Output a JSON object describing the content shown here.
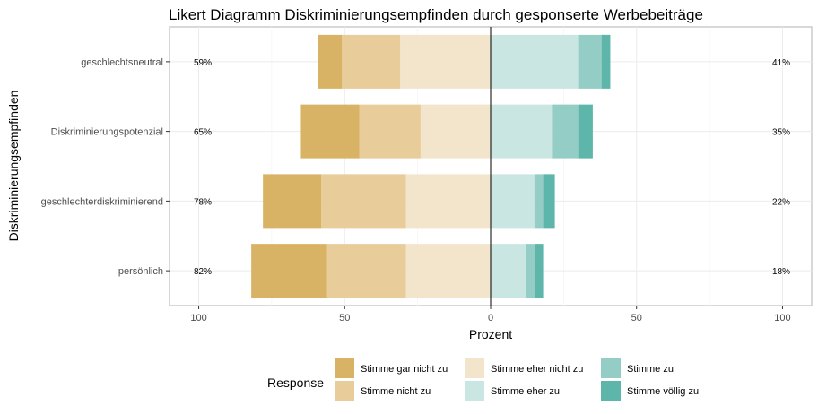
{
  "chart_data": {
    "type": "bar",
    "title": "Likert Diagramm Diskriminierungsempfinden durch gesponserte Werbebeiträge",
    "xlabel": "Prozent",
    "ylabel": "Diskriminierungsempfinden",
    "xlim": [
      -110,
      110
    ],
    "x_ticks": [
      {
        "value": -100,
        "label": "100"
      },
      {
        "value": -50,
        "label": "50"
      },
      {
        "value": 0,
        "label": "0"
      },
      {
        "value": 50,
        "label": "50"
      },
      {
        "value": 100,
        "label": "100"
      }
    ],
    "categories": [
      "geschlechtsneutral",
      "Diskriminierungspotenzial",
      "geschlechterdiskriminierend",
      "persönlich"
    ],
    "series": [
      {
        "name": "Stimme gar nicht zu",
        "color": "#d9b365",
        "values": [
          8,
          20,
          20,
          26
        ]
      },
      {
        "name": "Stimme nicht zu",
        "color": "#e8cc9a",
        "values": [
          20,
          21,
          29,
          27
        ]
      },
      {
        "name": "Stimme eher nicht zu",
        "color": "#f3e5cb",
        "values": [
          31,
          24,
          29,
          29
        ]
      },
      {
        "name": "Stimme eher zu",
        "color": "#c9e6e3",
        "values": [
          30,
          21,
          15,
          12
        ]
      },
      {
        "name": "Stimme zu",
        "color": "#93cdc5",
        "values": [
          8,
          9,
          3,
          3
        ]
      },
      {
        "name": "Stimme völlig zu",
        "color": "#5eb5aa",
        "values": [
          3,
          5,
          4,
          3
        ]
      }
    ],
    "negative_series_count": 3,
    "left_labels": [
      "59%",
      "65%",
      "78%",
      "82%"
    ],
    "right_labels": [
      "41%",
      "35%",
      "22%",
      "18%"
    ],
    "legend": {
      "title": "Response",
      "placement": "bottom"
    },
    "grid": true
  }
}
